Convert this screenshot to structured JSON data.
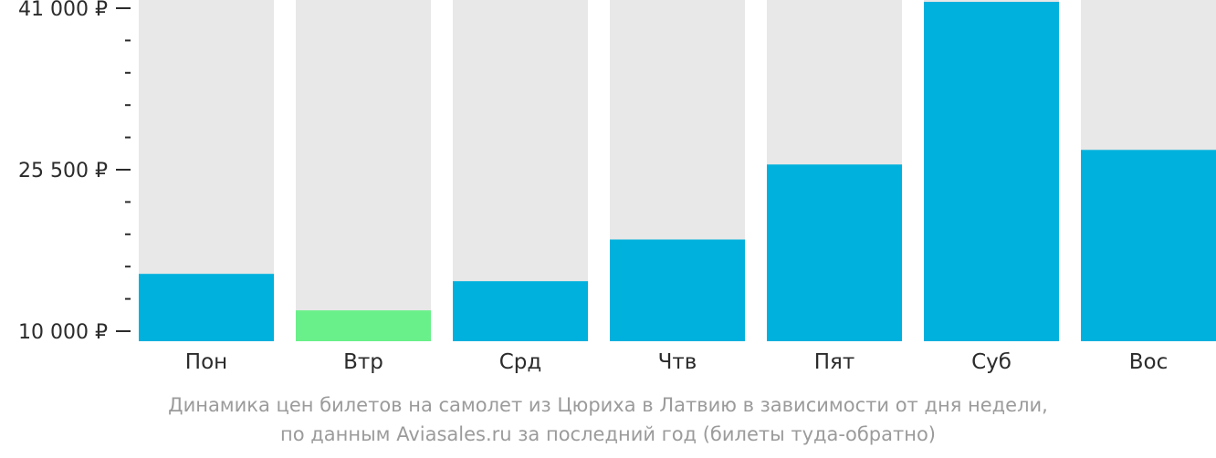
{
  "chart_data": {
    "type": "bar",
    "categories": [
      "Пон",
      "Втр",
      "Срд",
      "Чтв",
      "Пят",
      "Суб",
      "Вос"
    ],
    "values": [
      15500,
      12000,
      14800,
      18800,
      26000,
      43200,
      27400
    ],
    "highlight_index": 1,
    "y_ticks": [
      10000,
      25500,
      41000
    ],
    "y_tick_labels": [
      "10 000 ₽",
      "25 500 ₽",
      "41 000 ₽"
    ],
    "ylim": [
      10000,
      43200
    ],
    "grid": false,
    "legend": "none",
    "colors": {
      "bar": "#00b1dd",
      "highlight": "#6af08a",
      "background": "#e8e8e8",
      "axis_text": "#2b2b2b",
      "caption_text": "#9b9b9b"
    }
  },
  "caption": {
    "line1": "Динамика цен билетов на самолет из Цюриха в Латвию в зависимости от дня недели,",
    "line2": "по данным Aviasales.ru за последний год (билеты туда-обратно)"
  }
}
